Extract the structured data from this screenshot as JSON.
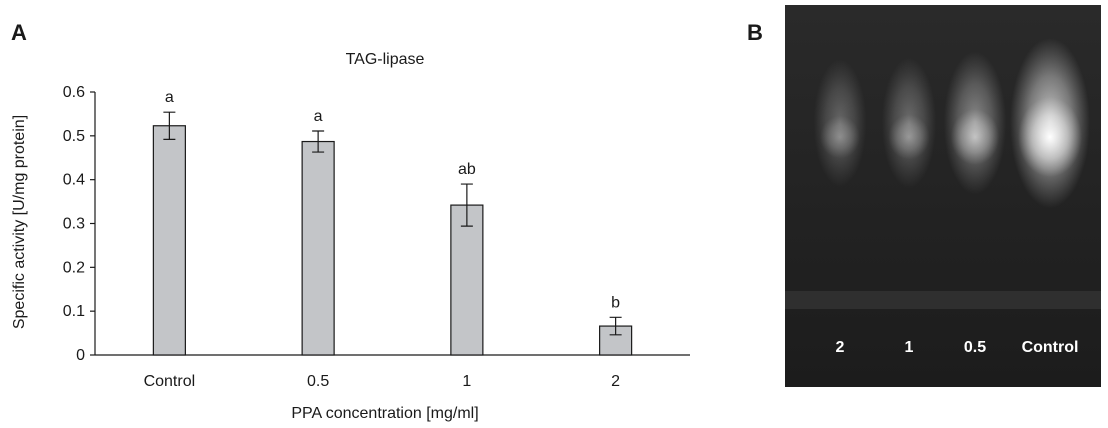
{
  "panels": {
    "a_label": "A",
    "b_label": "B"
  },
  "chart_data": {
    "type": "bar",
    "title": "TAG-lipase",
    "xlabel": "PPA concentration  [mg/ml]",
    "ylabel": "Specific activity [U/mg protein]",
    "categories": [
      "Control",
      "0.5",
      "1",
      "2"
    ],
    "values": [
      0.523,
      0.487,
      0.342,
      0.066
    ],
    "errors": [
      0.031,
      0.024,
      0.048,
      0.02
    ],
    "significance": [
      "a",
      "a",
      "ab",
      "b"
    ],
    "ylim": [
      0,
      0.6
    ],
    "yticks": [
      "0",
      "0.1",
      "0.2",
      "0.3",
      "0.4",
      "0.5",
      "0.6"
    ],
    "bar_color": "#c3c5c8",
    "grid": false
  },
  "gel": {
    "lanes": [
      "2",
      "1",
      "0.5",
      "Control"
    ],
    "band_intensity": [
      0.15,
      0.2,
      0.45,
      1.0
    ]
  }
}
